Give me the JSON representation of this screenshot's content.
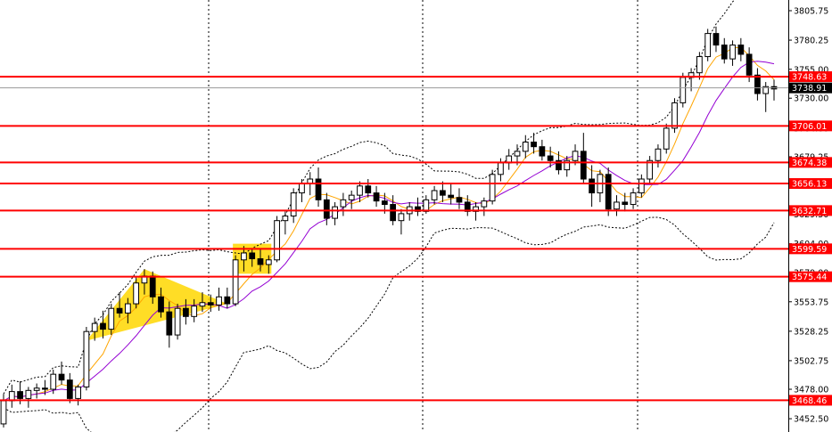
{
  "chart_data": {
    "type": "candlestick",
    "title": "",
    "xlabel": "",
    "ylabel": "",
    "ylim": [
      3441,
      3815
    ],
    "y_ticks": [
      "3805.75",
      "3780.25",
      "3755.00",
      "3730.00",
      "3704.00",
      "3679.25",
      "3655.75",
      "3629.50",
      "3604.00",
      "3579.00",
      "3553.75",
      "3528.25",
      "3502.75",
      "3478.00",
      "3452.50"
    ],
    "levels": [
      {
        "label": "3748.63",
        "value": 3748.63
      },
      {
        "label": "3706.01",
        "value": 3706.01
      },
      {
        "label": "3674.38",
        "value": 3674.38
      },
      {
        "label": "3656.13",
        "value": 3656.13
      },
      {
        "label": "3632.71",
        "value": 3632.71
      },
      {
        "label": "3599.59",
        "value": 3599.59
      },
      {
        "label": "3575.44",
        "value": 3575.44
      },
      {
        "label": "3468.46",
        "value": 3468.46
      }
    ],
    "current_price": {
      "label": "3738.91",
      "value": 3738.91
    },
    "colors": {
      "level_line": "#ff0000",
      "level_label_bg": "#ff0000",
      "current_label_bg": "#000000",
      "candle_up": "#ffffff",
      "candle_down": "#000000",
      "ma_fast": "#ffa500",
      "ma_slow": "#9400d3",
      "bands": "#000000",
      "pattern_fill": "#ffd700",
      "separator": "#000000"
    },
    "ohlc": [
      [
        3448,
        3474,
        3445,
        3468
      ],
      [
        3468,
        3482,
        3462,
        3476
      ],
      [
        3476,
        3485,
        3465,
        3470
      ],
      [
        3470,
        3480,
        3462,
        3477
      ],
      [
        3477,
        3483,
        3470,
        3479
      ],
      [
        3479,
        3486,
        3473,
        3478
      ],
      [
        3478,
        3495,
        3474,
        3491
      ],
      [
        3491,
        3502,
        3482,
        3486
      ],
      [
        3486,
        3492,
        3466,
        3470
      ],
      [
        3470,
        3482,
        3464,
        3480
      ],
      [
        3480,
        3532,
        3477,
        3528
      ],
      [
        3528,
        3540,
        3520,
        3535
      ],
      [
        3535,
        3546,
        3522,
        3530
      ],
      [
        3530,
        3552,
        3525,
        3548
      ],
      [
        3548,
        3562,
        3540,
        3544
      ],
      [
        3544,
        3557,
        3535,
        3552
      ],
      [
        3552,
        3576,
        3548,
        3570
      ],
      [
        3570,
        3582,
        3560,
        3576
      ],
      [
        3576,
        3580,
        3552,
        3558
      ],
      [
        3558,
        3566,
        3540,
        3545
      ],
      [
        3545,
        3554,
        3514,
        3525
      ],
      [
        3525,
        3552,
        3521,
        3548
      ],
      [
        3548,
        3556,
        3534,
        3541
      ],
      [
        3541,
        3556,
        3536,
        3550
      ],
      [
        3550,
        3562,
        3545,
        3553
      ],
      [
        3553,
        3560,
        3545,
        3551
      ],
      [
        3551,
        3566,
        3546,
        3558
      ],
      [
        3558,
        3566,
        3548,
        3552
      ],
      [
        3552,
        3594,
        3550,
        3590
      ],
      [
        3590,
        3602,
        3580,
        3596
      ],
      [
        3596,
        3600,
        3584,
        3591
      ],
      [
        3591,
        3600,
        3580,
        3586
      ],
      [
        3586,
        3594,
        3578,
        3590
      ],
      [
        3590,
        3628,
        3588,
        3624
      ],
      [
        3624,
        3632,
        3612,
        3628
      ],
      [
        3628,
        3652,
        3622,
        3648
      ],
      [
        3648,
        3660,
        3640,
        3656
      ],
      [
        3656,
        3666,
        3646,
        3660
      ],
      [
        3660,
        3670,
        3636,
        3642
      ],
      [
        3642,
        3648,
        3620,
        3626
      ],
      [
        3626,
        3640,
        3620,
        3636
      ],
      [
        3636,
        3648,
        3628,
        3642
      ],
      [
        3642,
        3650,
        3634,
        3646
      ],
      [
        3646,
        3658,
        3640,
        3654
      ],
      [
        3654,
        3660,
        3644,
        3648
      ],
      [
        3648,
        3654,
        3636,
        3641
      ],
      [
        3641,
        3648,
        3630,
        3638
      ],
      [
        3638,
        3646,
        3620,
        3624
      ],
      [
        3624,
        3634,
        3612,
        3630
      ],
      [
        3630,
        3640,
        3624,
        3636
      ],
      [
        3636,
        3644,
        3628,
        3632
      ],
      [
        3632,
        3646,
        3630,
        3642
      ],
      [
        3642,
        3654,
        3638,
        3650
      ],
      [
        3650,
        3658,
        3640,
        3646
      ],
      [
        3646,
        3656,
        3638,
        3644
      ],
      [
        3644,
        3652,
        3634,
        3640
      ],
      [
        3640,
        3646,
        3628,
        3632
      ],
      [
        3632,
        3640,
        3624,
        3636
      ],
      [
        3636,
        3644,
        3628,
        3641
      ],
      [
        3641,
        3668,
        3638,
        3664
      ],
      [
        3664,
        3678,
        3658,
        3674
      ],
      [
        3674,
        3686,
        3668,
        3680
      ],
      [
        3680,
        3690,
        3672,
        3684
      ],
      [
        3684,
        3698,
        3678,
        3692
      ],
      [
        3692,
        3700,
        3682,
        3688
      ],
      [
        3688,
        3694,
        3676,
        3680
      ],
      [
        3680,
        3688,
        3670,
        3676
      ],
      [
        3676,
        3684,
        3664,
        3668
      ],
      [
        3668,
        3680,
        3662,
        3676
      ],
      [
        3676,
        3690,
        3672,
        3684
      ],
      [
        3684,
        3700,
        3656,
        3660
      ],
      [
        3660,
        3672,
        3636,
        3648
      ],
      [
        3648,
        3668,
        3640,
        3664
      ],
      [
        3664,
        3670,
        3628,
        3634
      ],
      [
        3634,
        3646,
        3628,
        3640
      ],
      [
        3640,
        3648,
        3632,
        3638
      ],
      [
        3638,
        3652,
        3634,
        3648
      ],
      [
        3648,
        3664,
        3644,
        3660
      ],
      [
        3660,
        3680,
        3656,
        3676
      ],
      [
        3676,
        3690,
        3670,
        3686
      ],
      [
        3686,
        3708,
        3682,
        3704
      ],
      [
        3704,
        3730,
        3700,
        3726
      ],
      [
        3726,
        3752,
        3722,
        3748
      ],
      [
        3748,
        3756,
        3736,
        3752
      ],
      [
        3752,
        3770,
        3746,
        3766
      ],
      [
        3766,
        3790,
        3762,
        3786
      ],
      [
        3786,
        3792,
        3770,
        3776
      ],
      [
        3776,
        3782,
        3760,
        3764
      ],
      [
        3764,
        3780,
        3758,
        3776
      ],
      [
        3776,
        3782,
        3762,
        3768
      ],
      [
        3768,
        3774,
        3744,
        3750
      ],
      [
        3750,
        3756,
        3728,
        3734
      ],
      [
        3734,
        3744,
        3718,
        3740
      ],
      [
        3740,
        3746,
        3728,
        3738
      ]
    ]
  }
}
